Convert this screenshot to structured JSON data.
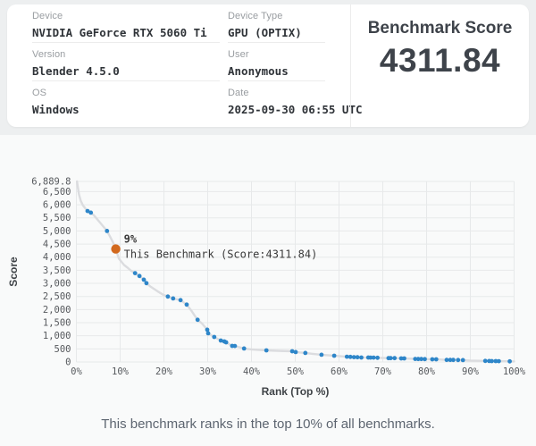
{
  "card": {
    "col1": [
      {
        "label": "Device",
        "value": "NVIDIA GeForce RTX 5060 Ti"
      },
      {
        "label": "Version",
        "value": "Blender 4.5.0"
      },
      {
        "label": "OS",
        "value": "Windows"
      }
    ],
    "col2": [
      {
        "label": "Device Type",
        "value": "GPU (OPTIX)"
      },
      {
        "label": "User",
        "value": "Anonymous"
      },
      {
        "label": "Date",
        "value": "2025-09-30 06:55 UTC"
      }
    ],
    "score_title": "Benchmark Score",
    "score_value": "4311.84"
  },
  "caption": "This benchmark ranks in the top 10% of all benchmarks.",
  "chart_data": {
    "type": "scatter",
    "xlabel": "Rank (Top %)",
    "ylabel": "Score",
    "xlim": [
      0,
      100
    ],
    "ylim": [
      0,
      6889.8
    ],
    "grid": true,
    "colors": {
      "point": "#2e86c9",
      "marker": "#d2691e",
      "line": "#dbdcdf",
      "grid": "#e7e9ea",
      "tick_text": "#56595d",
      "axis_title": "#3f4347",
      "annotation": "#3a3a3a"
    },
    "xticks": [
      {
        "v": 0,
        "label": "0%"
      },
      {
        "v": 10,
        "label": "10%"
      },
      {
        "v": 20,
        "label": "20%"
      },
      {
        "v": 30,
        "label": "30%"
      },
      {
        "v": 40,
        "label": "40%"
      },
      {
        "v": 50,
        "label": "50%"
      },
      {
        "v": 60,
        "label": "60%"
      },
      {
        "v": 70,
        "label": "70%"
      },
      {
        "v": 80,
        "label": "80%"
      },
      {
        "v": 90,
        "label": "90%"
      },
      {
        "v": 100,
        "label": "100%"
      }
    ],
    "yticks": [
      {
        "v": 0,
        "label": "0"
      },
      {
        "v": 500,
        "label": "500"
      },
      {
        "v": 1000,
        "label": "1,000"
      },
      {
        "v": 1500,
        "label": "1,500"
      },
      {
        "v": 2000,
        "label": "2,000"
      },
      {
        "v": 2500,
        "label": "2,500"
      },
      {
        "v": 3000,
        "label": "3,000"
      },
      {
        "v": 3500,
        "label": "3,500"
      },
      {
        "v": 4000,
        "label": "4,000"
      },
      {
        "v": 4500,
        "label": "4,500"
      },
      {
        "v": 5000,
        "label": "5,000"
      },
      {
        "v": 5500,
        "label": "5,500"
      },
      {
        "v": 6000,
        "label": "6,000"
      },
      {
        "v": 6500,
        "label": "6,500"
      },
      {
        "v": 6889.8,
        "label": "6,889.8"
      }
    ],
    "points": [
      [
        2.55,
        5760
      ],
      [
        3.3,
        5700
      ],
      [
        7.0,
        5000
      ],
      [
        13.4,
        3390
      ],
      [
        14.4,
        3280
      ],
      [
        15.4,
        3140
      ],
      [
        16.0,
        3010
      ],
      [
        20.9,
        2495
      ],
      [
        22.1,
        2425
      ],
      [
        23.8,
        2360
      ],
      [
        25.2,
        2190
      ],
      [
        27.7,
        1610
      ],
      [
        29.9,
        1230
      ],
      [
        30.1,
        1095
      ],
      [
        31.5,
        955
      ],
      [
        33.0,
        820
      ],
      [
        33.8,
        785
      ],
      [
        34.2,
        750
      ],
      [
        35.6,
        615
      ],
      [
        36.2,
        612
      ],
      [
        38.3,
        515
      ],
      [
        43.4,
        445
      ],
      [
        49.3,
        410
      ],
      [
        50.1,
        380
      ],
      [
        52.3,
        345
      ],
      [
        56.0,
        275
      ],
      [
        58.9,
        240
      ],
      [
        61.8,
        200
      ],
      [
        62.6,
        196
      ],
      [
        63.4,
        185
      ],
      [
        64.2,
        182
      ],
      [
        65.1,
        172
      ],
      [
        66.7,
        170
      ],
      [
        67.2,
        168
      ],
      [
        67.9,
        166
      ],
      [
        68.8,
        160
      ],
      [
        71.3,
        148
      ],
      [
        71.8,
        147
      ],
      [
        72.7,
        145
      ],
      [
        74.2,
        138
      ],
      [
        74.9,
        136
      ],
      [
        77.4,
        115
      ],
      [
        78.1,
        113
      ],
      [
        78.8,
        112
      ],
      [
        79.6,
        110
      ],
      [
        81.3,
        104
      ],
      [
        82.2,
        102
      ],
      [
        84.6,
        80
      ],
      [
        85.4,
        79
      ],
      [
        86.1,
        78
      ],
      [
        87.2,
        76
      ],
      [
        88.3,
        70
      ],
      [
        93.4,
        40
      ],
      [
        94.3,
        38
      ],
      [
        94.9,
        35
      ],
      [
        95.8,
        33
      ],
      [
        96.5,
        32
      ],
      [
        99.0,
        25
      ]
    ],
    "line": [
      [
        0.15,
        6889.8
      ],
      [
        0.3,
        6700
      ],
      [
        0.6,
        6400
      ],
      [
        1.0,
        6150
      ],
      [
        1.5,
        5980
      ],
      [
        2.0,
        5870
      ],
      [
        2.55,
        5760
      ],
      [
        3.3,
        5700
      ],
      [
        4.0,
        5600
      ],
      [
        5.0,
        5400
      ],
      [
        6.0,
        5200
      ],
      [
        7.0,
        5000
      ],
      [
        7.8,
        4750
      ],
      [
        8.4,
        4550
      ],
      [
        9.0,
        4311.84
      ],
      [
        9.7,
        3950
      ],
      [
        10.9,
        3700
      ],
      [
        11.7,
        3600
      ],
      [
        12.5,
        3480
      ],
      [
        13.4,
        3390
      ],
      [
        14.4,
        3280
      ],
      [
        15.4,
        3140
      ],
      [
        16.0,
        3010
      ],
      [
        17.0,
        2870
      ],
      [
        18.5,
        2700
      ],
      [
        19.8,
        2570
      ],
      [
        20.9,
        2495
      ],
      [
        22.1,
        2425
      ],
      [
        23.8,
        2360
      ],
      [
        25.2,
        2190
      ],
      [
        26.3,
        1950
      ],
      [
        26.9,
        1800
      ],
      [
        27.7,
        1610
      ],
      [
        28.7,
        1470
      ],
      [
        29.9,
        1230
      ],
      [
        30.1,
        1095
      ],
      [
        31.5,
        955
      ],
      [
        33.0,
        820
      ],
      [
        33.8,
        785
      ],
      [
        34.2,
        750
      ],
      [
        35.6,
        615
      ],
      [
        36.2,
        612
      ],
      [
        38.3,
        515
      ],
      [
        40.0,
        480
      ],
      [
        43.4,
        445
      ],
      [
        46.0,
        428
      ],
      [
        49.3,
        410
      ],
      [
        50.1,
        380
      ],
      [
        52.3,
        345
      ],
      [
        54.0,
        310
      ],
      [
        56.0,
        275
      ],
      [
        58.9,
        240
      ],
      [
        61.8,
        200
      ],
      [
        63.4,
        185
      ],
      [
        65.1,
        172
      ],
      [
        67.2,
        168
      ],
      [
        68.8,
        160
      ],
      [
        71.3,
        148
      ],
      [
        72.7,
        145
      ],
      [
        74.9,
        136
      ],
      [
        77.4,
        115
      ],
      [
        79.6,
        110
      ],
      [
        81.3,
        104
      ],
      [
        82.2,
        102
      ],
      [
        84.6,
        80
      ],
      [
        86.1,
        78
      ],
      [
        87.2,
        76
      ],
      [
        88.3,
        70
      ],
      [
        90.0,
        55
      ],
      [
        93.4,
        40
      ],
      [
        94.9,
        35
      ],
      [
        96.5,
        32
      ],
      [
        99.0,
        25
      ],
      [
        100.0,
        22
      ]
    ],
    "benchmark_point": {
      "pct": 9,
      "score": 4311.84
    },
    "annotation_line1": "9%",
    "annotation_line2": "This Benchmark (Score:4311.84)"
  }
}
